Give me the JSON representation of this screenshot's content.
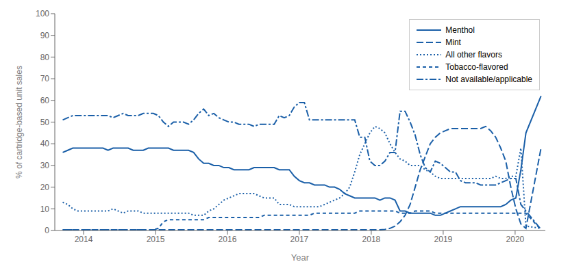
{
  "chart_data": {
    "type": "line",
    "xlabel": "Year",
    "ylabel": "% of cartridge-based unit sales",
    "x": [
      2013.71,
      2013.78,
      2013.85,
      2013.92,
      2013.99,
      2014.06,
      2014.13,
      2014.2,
      2014.27,
      2014.34,
      2014.41,
      2014.48,
      2014.55,
      2014.62,
      2014.69,
      2014.76,
      2014.83,
      2014.9,
      2014.97,
      2015.04,
      2015.11,
      2015.18,
      2015.25,
      2015.32,
      2015.39,
      2015.46,
      2015.53,
      2015.6,
      2015.67,
      2015.74,
      2015.81,
      2015.88,
      2015.95,
      2016.02,
      2016.09,
      2016.16,
      2016.23,
      2016.3,
      2016.37,
      2016.44,
      2016.51,
      2016.58,
      2016.65,
      2016.72,
      2016.79,
      2016.86,
      2016.93,
      2017.0,
      2017.07,
      2017.14,
      2017.21,
      2017.28,
      2017.35,
      2017.42,
      2017.49,
      2017.56,
      2017.63,
      2017.7,
      2017.77,
      2017.84,
      2017.91,
      2017.98,
      2018.05,
      2018.12,
      2018.19,
      2018.26,
      2018.33,
      2018.4,
      2018.47,
      2018.54,
      2018.61,
      2018.68,
      2018.75,
      2018.82,
      2018.89,
      2018.96,
      2019.03,
      2019.1,
      2019.17,
      2019.24,
      2019.31,
      2019.38,
      2019.45,
      2019.52,
      2019.59,
      2019.66,
      2019.73,
      2019.8,
      2019.87,
      2019.94,
      2020.01,
      2020.08,
      2020.15,
      2020.36
    ],
    "series": [
      {
        "name": "Menthol",
        "color": "#1a5fa8",
        "line_style": "solid",
        "values": [
          36,
          37,
          38,
          38,
          38,
          38,
          38,
          38,
          38,
          37,
          38,
          38,
          38,
          38,
          37,
          37,
          37,
          38,
          38,
          38,
          38,
          38,
          37,
          37,
          37,
          37,
          36,
          33,
          31,
          31,
          30,
          30,
          29,
          29,
          28,
          28,
          28,
          28,
          29,
          29,
          29,
          29,
          29,
          28,
          28,
          28,
          25,
          23,
          22,
          22,
          21,
          21,
          21,
          20,
          20,
          19,
          17,
          16,
          15,
          15,
          15,
          15,
          15,
          14,
          15,
          15,
          14,
          9,
          9,
          8,
          8,
          8,
          8,
          8,
          7,
          7,
          8,
          9,
          10,
          11,
          11,
          11,
          11,
          11,
          11,
          11,
          11,
          11,
          12,
          14,
          15,
          28,
          45,
          62
        ]
      },
      {
        "name": "Mint",
        "color": "#1a5fa8",
        "line_style": "longdash",
        "values": [
          0.3,
          0.3,
          0.3,
          0.3,
          0.3,
          0.3,
          0.3,
          0.3,
          0.3,
          0.3,
          0.3,
          0.3,
          0.3,
          0.3,
          0.3,
          0.3,
          0.3,
          0.3,
          0.3,
          0.3,
          0.3,
          0.3,
          0.3,
          0.3,
          0.3,
          0.3,
          0.3,
          0.3,
          0.3,
          0.3,
          0.3,
          0.3,
          0.3,
          0.3,
          0.3,
          0.3,
          0.3,
          0.3,
          0.3,
          0.3,
          0.3,
          0.3,
          0.3,
          0.3,
          0.3,
          0.3,
          0.3,
          0.3,
          0.3,
          0.3,
          0.3,
          0.3,
          0.3,
          0.3,
          0.3,
          0.3,
          0.3,
          0.3,
          0.3,
          0.3,
          0.3,
          0.3,
          0.3,
          0.3,
          0.5,
          1,
          2,
          4,
          7,
          12,
          20,
          28,
          34,
          40,
          43,
          45,
          46,
          47,
          47,
          47,
          47,
          47,
          47,
          47,
          48,
          46,
          43,
          38,
          32,
          20,
          10,
          3,
          1,
          38
        ]
      },
      {
        "name": "All other flavors",
        "color": "#1a5fa8",
        "line_style": "dotted",
        "values": [
          13,
          12,
          10,
          9,
          9,
          9,
          9,
          9,
          9,
          9,
          10,
          9,
          8,
          9,
          9,
          9,
          8,
          8,
          8,
          8,
          8,
          8,
          8,
          8,
          8,
          8,
          7,
          7,
          7,
          9,
          10,
          12,
          14,
          15,
          16,
          17,
          17,
          17,
          17,
          16,
          15,
          15,
          15,
          12,
          12,
          12,
          11,
          11,
          11,
          11,
          11,
          11,
          12,
          13,
          14,
          15,
          17,
          20,
          27,
          35,
          40,
          45,
          48,
          47,
          45,
          40,
          36,
          33,
          32,
          30,
          30,
          30,
          28,
          27,
          25,
          24,
          24,
          24,
          24,
          24,
          24,
          24,
          24,
          24,
          24,
          24,
          25,
          24,
          24,
          25,
          25,
          38,
          2,
          1
        ]
      },
      {
        "name": "Tobacco-flavored",
        "color": "#1a5fa8",
        "line_style": "dashed",
        "values": [
          0.3,
          0.3,
          0.3,
          0.3,
          0.3,
          0.3,
          0.3,
          0.3,
          0.3,
          0.3,
          0.3,
          0.3,
          0.3,
          0.3,
          0.3,
          0.3,
          0.3,
          0.3,
          0.3,
          1,
          4,
          5,
          5,
          5,
          5,
          5,
          5,
          5,
          5,
          6,
          6,
          6,
          6,
          6,
          6,
          6,
          6,
          6,
          6,
          6,
          7,
          7,
          7,
          7,
          7,
          7,
          7,
          7,
          7,
          7,
          8,
          8,
          8,
          8,
          8,
          8,
          8,
          8,
          8,
          9,
          9,
          9,
          9,
          9,
          9,
          9,
          9,
          8,
          8,
          8,
          9,
          9,
          9,
          9,
          8,
          8,
          8,
          8,
          8,
          8,
          8,
          8,
          8,
          8,
          8,
          8,
          8,
          8,
          8,
          8,
          8,
          8,
          8,
          0.3
        ]
      },
      {
        "name": "Not available/applicable",
        "color": "#1a5fa8",
        "line_style": "dashdot",
        "values": [
          51,
          52,
          53,
          53,
          53,
          53,
          53,
          53,
          53,
          53,
          52,
          53,
          54,
          53,
          53,
          53,
          54,
          54,
          54,
          53,
          50,
          48,
          50,
          50,
          50,
          49,
          51,
          54,
          56,
          53,
          54,
          52,
          51,
          50,
          50,
          49,
          49,
          49,
          48,
          49,
          49,
          49,
          49,
          53,
          52,
          53,
          57,
          59,
          59,
          51,
          51,
          51,
          51,
          51,
          51,
          51,
          51,
          51,
          51,
          43,
          43,
          32,
          30,
          30,
          32,
          36,
          36,
          55,
          55,
          50,
          44,
          35,
          29,
          27,
          32,
          31,
          29,
          27,
          27,
          23,
          22,
          22,
          22,
          21,
          21,
          21,
          21,
          22,
          23,
          24,
          24,
          12,
          9,
          0.5
        ]
      }
    ],
    "xlim": [
      2013.6,
      2020.42
    ],
    "ylim": [
      0,
      100
    ],
    "xticks": [
      2014,
      2015,
      2016,
      2017,
      2018,
      2019,
      2020
    ],
    "yticks": [
      0,
      10,
      20,
      30,
      40,
      50,
      60,
      70,
      80,
      90,
      100
    ],
    "legend": "upper right",
    "grid": false
  }
}
